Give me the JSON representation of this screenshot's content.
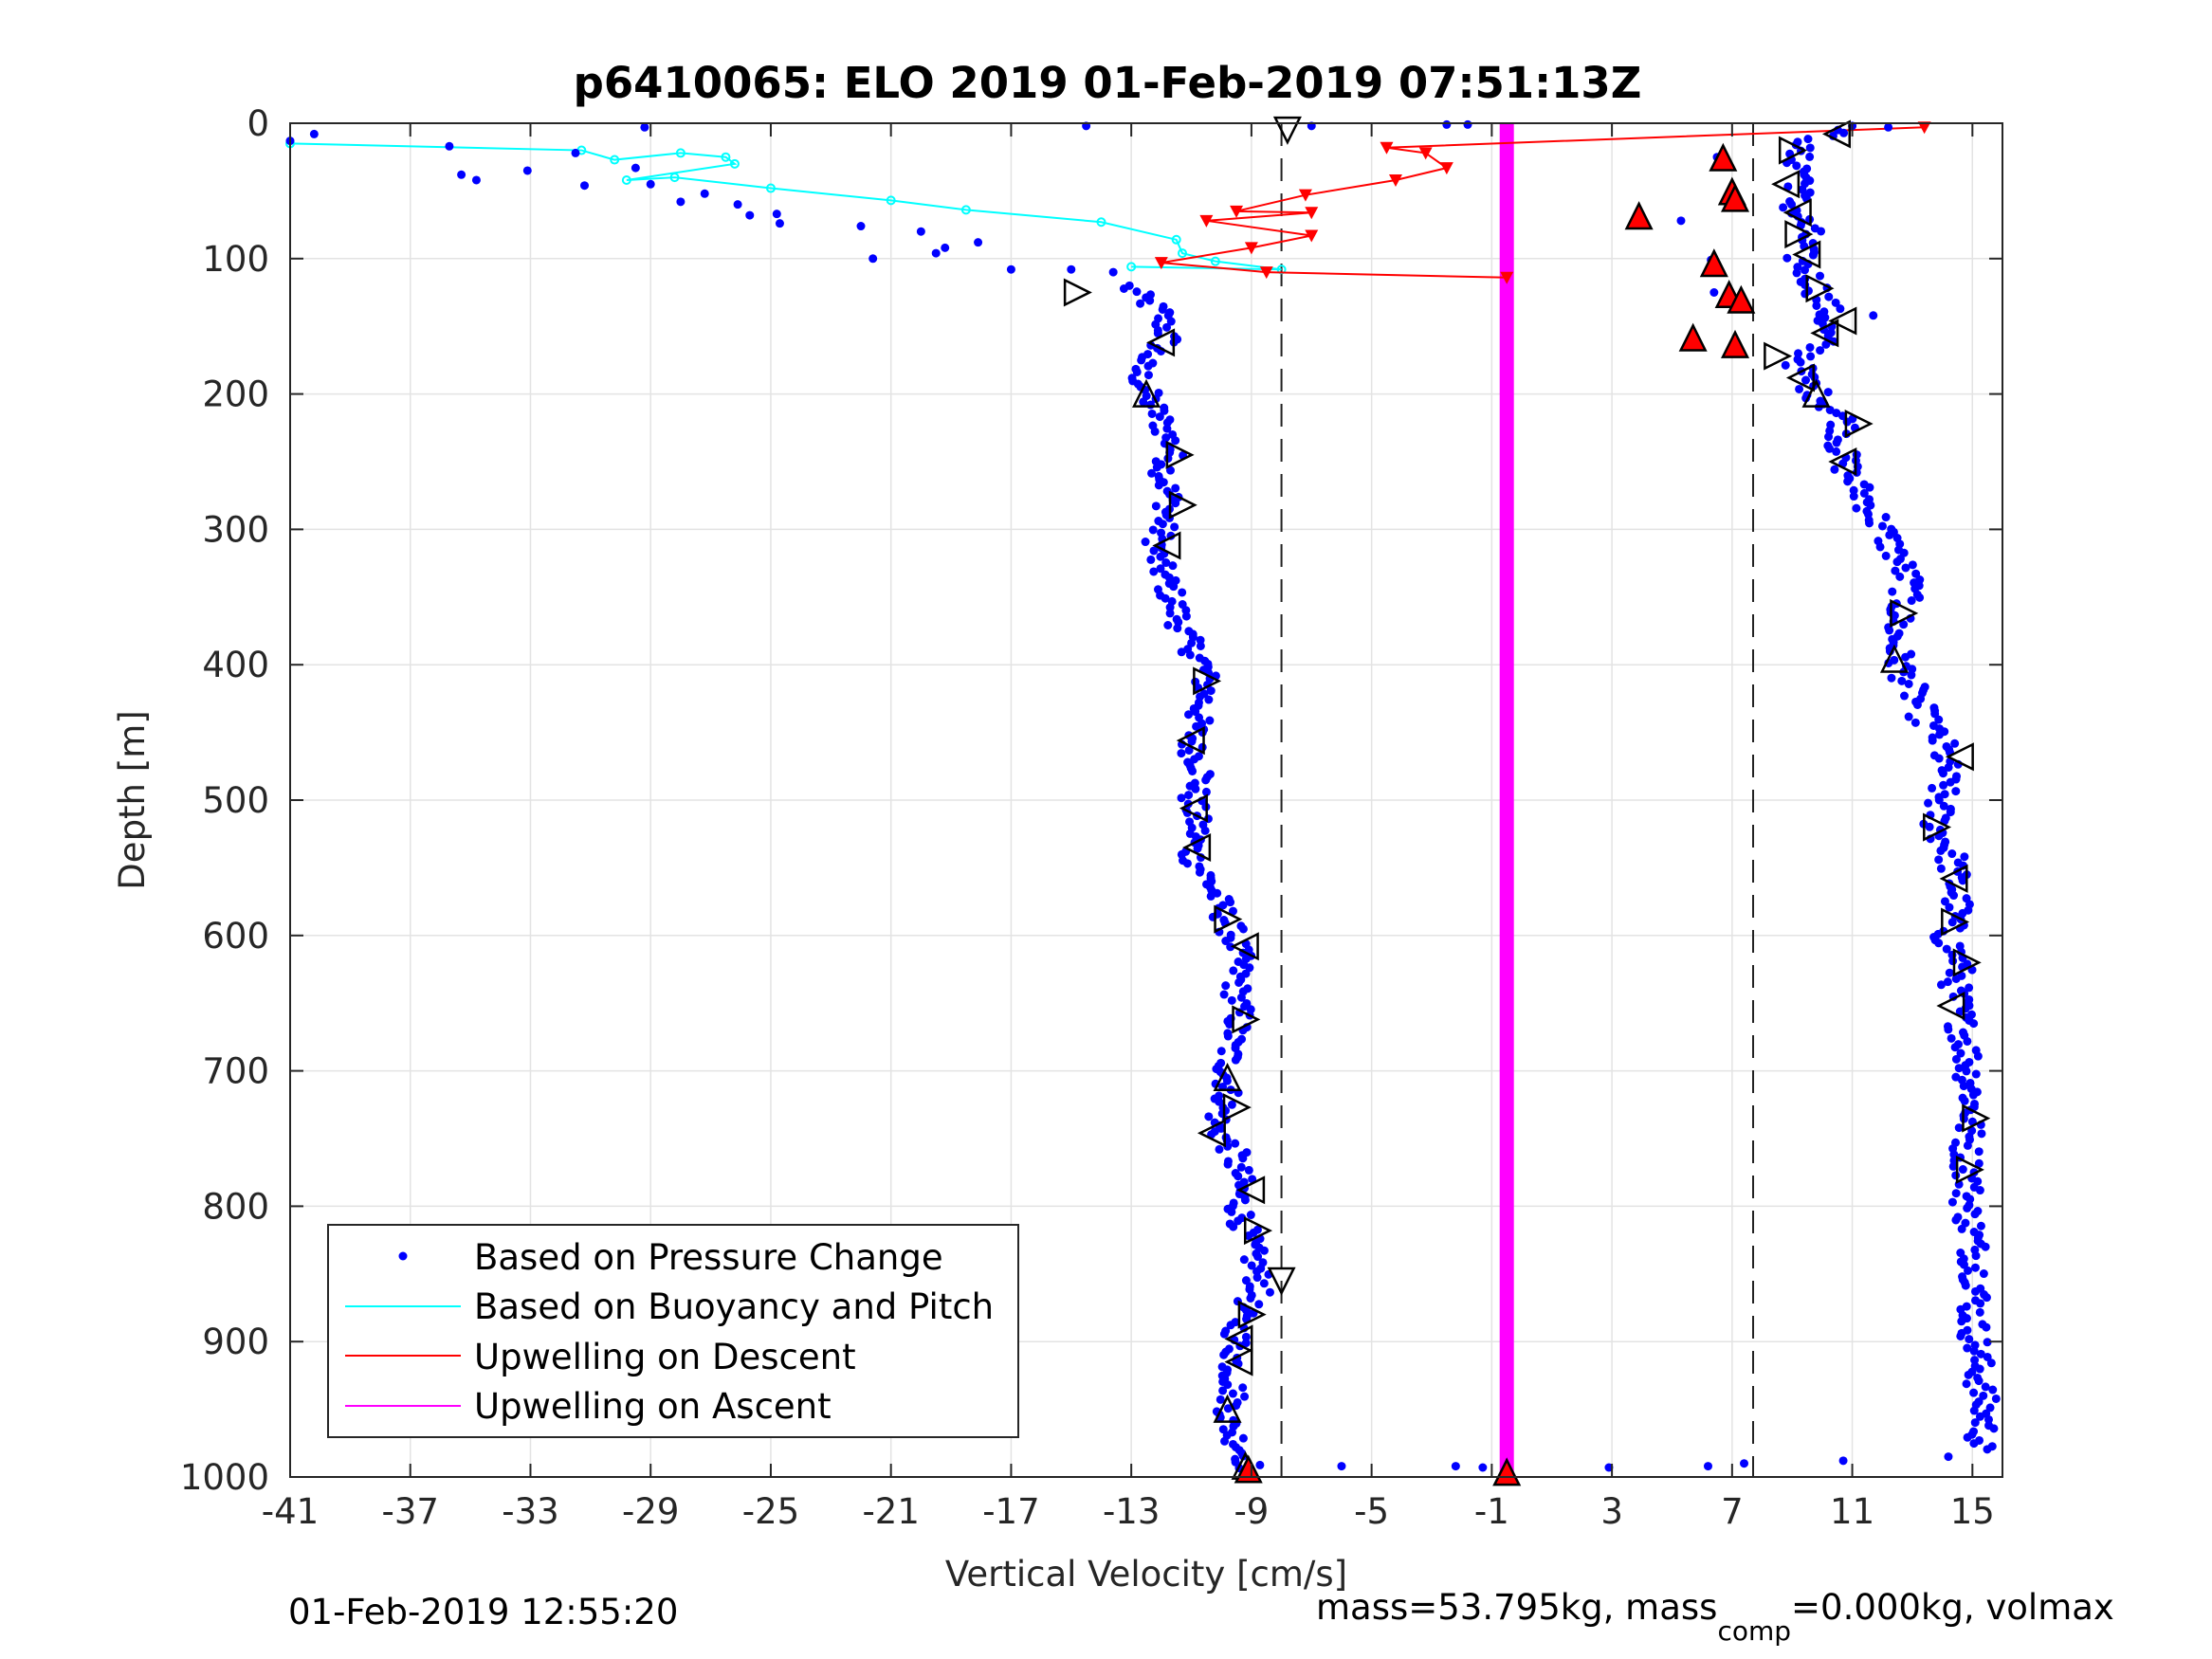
{
  "chart_data": {
    "type": "scatter",
    "title": "p6410065: ELO 2019 01-Feb-2019 07:51:13Z",
    "xlabel": "Vertical Velocity [cm/s]",
    "ylabel": "Depth [m]",
    "xlim": [
      -41,
      16
    ],
    "ylim": [
      0,
      1000
    ],
    "y_reversed": true,
    "grid": true,
    "xticks": [
      -41,
      -37,
      -33,
      -29,
      -25,
      -21,
      -17,
      -13,
      -9,
      -5,
      -1,
      3,
      7,
      11,
      15
    ],
    "yticks": [
      0,
      100,
      200,
      300,
      400,
      500,
      600,
      700,
      800,
      900,
      1000
    ],
    "vlines_dashed": [
      -8,
      7.7
    ],
    "legend": {
      "position": "bottom-left",
      "entries": [
        {
          "label": "Based on Pressure Change",
          "color": "#0000ff",
          "marker": "dot"
        },
        {
          "label": "Based on Buoyancy and Pitch",
          "color": "#00ffff",
          "marker": "line"
        },
        {
          "label": "Upwelling on Descent",
          "color": "#ff0000",
          "marker": "line"
        },
        {
          "label": "Upwelling on Ascent",
          "color": "#ff00ff",
          "marker": "line"
        }
      ]
    },
    "series": [
      {
        "name": "Based on Pressure Change",
        "color": "#0000ff",
        "descent_profile": {
          "depths": [
            120,
            140,
            160,
            180,
            200,
            220,
            240,
            260,
            280,
            300,
            320,
            340,
            360,
            380,
            400,
            420,
            440,
            460,
            480,
            500,
            520,
            540,
            560,
            580,
            600,
            620,
            640,
            660,
            680,
            700,
            720,
            740,
            760,
            780,
            800,
            820,
            840,
            860,
            880,
            900,
            920,
            940,
            960,
            980,
            995
          ],
          "velocities": [
            -13.2,
            -12.0,
            -11.8,
            -12.8,
            -12.5,
            -12.0,
            -11.6,
            -11.9,
            -11.7,
            -12.0,
            -12.2,
            -11.8,
            -11.5,
            -11.2,
            -10.6,
            -10.5,
            -10.8,
            -11.0,
            -10.6,
            -11.0,
            -10.8,
            -11.0,
            -10.4,
            -10.0,
            -9.6,
            -9.4,
            -9.5,
            -9.4,
            -9.7,
            -9.8,
            -9.8,
            -10.2,
            -9.6,
            -9.4,
            -9.4,
            -9.2,
            -8.9,
            -8.7,
            -9.4,
            -9.5,
            -9.6,
            -9.6,
            -9.8,
            -9.3,
            -9.0
          ]
        },
        "ascent_profile": {
          "depths": [
            5,
            20,
            40,
            60,
            80,
            100,
            120,
            140,
            160,
            180,
            200,
            220,
            240,
            260,
            280,
            300,
            320,
            340,
            360,
            380,
            400,
            420,
            440,
            460,
            480,
            500,
            520,
            540,
            560,
            580,
            600,
            620,
            640,
            660,
            680,
            700,
            720,
            740,
            760,
            780,
            800,
            820,
            840,
            860,
            880,
            900,
            920,
            940,
            960,
            980
          ],
          "velocities": [
            10.5,
            9.0,
            9.5,
            9.0,
            9.5,
            9.2,
            9.8,
            10.2,
            10.0,
            9.2,
            9.8,
            10.8,
            10.6,
            10.9,
            11.5,
            12.0,
            12.5,
            12.9,
            12.6,
            12.4,
            12.6,
            13.0,
            13.4,
            14.0,
            14.1,
            13.9,
            13.8,
            14.3,
            14.4,
            14.5,
            14.1,
            14.6,
            14.4,
            14.6,
            14.8,
            14.9,
            15.0,
            14.9,
            14.8,
            14.9,
            14.8,
            15.0,
            15.1,
            15.2,
            15.0,
            15.1,
            15.2,
            15.3,
            15.4,
            15.2
          ]
        },
        "surface_points": [
          {
            "v": -41.0,
            "d": 13
          },
          {
            "v": -40.2,
            "d": 8
          },
          {
            "v": -35.7,
            "d": 17
          },
          {
            "v": -35.3,
            "d": 38
          },
          {
            "v": -34.8,
            "d": 42
          },
          {
            "v": -33.1,
            "d": 35
          },
          {
            "v": -31.5,
            "d": 22
          },
          {
            "v": -31.2,
            "d": 46
          },
          {
            "v": -29.5,
            "d": 33
          },
          {
            "v": -29.2,
            "d": 3
          },
          {
            "v": -29.0,
            "d": 45
          },
          {
            "v": -28.0,
            "d": 58
          },
          {
            "v": -27.2,
            "d": 52
          },
          {
            "v": -26.1,
            "d": 60
          },
          {
            "v": -25.7,
            "d": 68
          },
          {
            "v": -24.8,
            "d": 67
          },
          {
            "v": -24.7,
            "d": 74
          },
          {
            "v": -22.0,
            "d": 76
          },
          {
            "v": -20.0,
            "d": 80
          },
          {
            "v": -19.2,
            "d": 92
          },
          {
            "v": -18.1,
            "d": 88
          },
          {
            "v": -21.6,
            "d": 100
          },
          {
            "v": -19.5,
            "d": 96
          },
          {
            "v": -17.0,
            "d": 108
          },
          {
            "v": -15.0,
            "d": 108
          },
          {
            "v": -13.6,
            "d": 110
          },
          {
            "v": -14.5,
            "d": 2
          },
          {
            "v": -7.0,
            "d": 2
          },
          {
            "v": -2.5,
            "d": 1
          },
          {
            "v": -1.8,
            "d": 1
          },
          {
            "v": 11.0,
            "d": 2
          },
          {
            "v": 12.2,
            "d": 3
          },
          {
            "v": 6.5,
            "d": 25
          },
          {
            "v": 5.3,
            "d": 72
          },
          {
            "v": 6.3,
            "d": 101
          },
          {
            "v": 5.6,
            "d": 163
          },
          {
            "v": 6.4,
            "d": 125
          },
          {
            "v": 11.7,
            "d": 142
          }
        ],
        "bottom_points": [
          {
            "v": -6.0,
            "d": 992
          },
          {
            "v": -2.2,
            "d": 992
          },
          {
            "v": -1.3,
            "d": 993
          },
          {
            "v": 2.9,
            "d": 993
          },
          {
            "v": 6.2,
            "d": 992
          },
          {
            "v": 7.4,
            "d": 990
          },
          {
            "v": 10.7,
            "d": 988
          },
          {
            "v": 14.2,
            "d": 985
          }
        ]
      },
      {
        "name": "Based on Buoyancy and Pitch",
        "color": "#00ffff",
        "points": [
          {
            "v": -41.0,
            "d": 15
          },
          {
            "v": -31.3,
            "d": 20
          },
          {
            "v": -30.2,
            "d": 27
          },
          {
            "v": -28.0,
            "d": 22
          },
          {
            "v": -26.5,
            "d": 25
          },
          {
            "v": -26.2,
            "d": 30
          },
          {
            "v": -29.8,
            "d": 42
          },
          {
            "v": -28.2,
            "d": 40
          },
          {
            "v": -25.0,
            "d": 48
          },
          {
            "v": -21.0,
            "d": 57
          },
          {
            "v": -18.5,
            "d": 64
          },
          {
            "v": -14.0,
            "d": 73
          },
          {
            "v": -11.5,
            "d": 86
          },
          {
            "v": -11.3,
            "d": 96
          },
          {
            "v": -10.2,
            "d": 102
          },
          {
            "v": -8.0,
            "d": 108
          },
          {
            "v": -13.0,
            "d": 106
          }
        ]
      },
      {
        "name": "Upwelling on Descent",
        "color": "#ff0000",
        "points": [
          {
            "v": 13.4,
            "d": 3
          },
          {
            "v": -4.5,
            "d": 18
          },
          {
            "v": -3.2,
            "d": 22
          },
          {
            "v": -2.5,
            "d": 33
          },
          {
            "v": -4.2,
            "d": 42
          },
          {
            "v": -7.2,
            "d": 53
          },
          {
            "v": -9.5,
            "d": 65
          },
          {
            "v": -7.0,
            "d": 66
          },
          {
            "v": -10.5,
            "d": 72
          },
          {
            "v": -7.0,
            "d": 83
          },
          {
            "v": -9.0,
            "d": 92
          },
          {
            "v": -12.0,
            "d": 103
          },
          {
            "v": -8.5,
            "d": 110
          },
          {
            "v": -0.5,
            "d": 114
          }
        ]
      },
      {
        "name": "Upwelling on Ascent",
        "color": "#ff00ff",
        "constant_value": -0.5,
        "depth_range": [
          0,
          1000
        ]
      },
      {
        "name": "Triangles (open)",
        "color": "#000000",
        "points": [
          {
            "v": -7.8,
            "d": 5,
            "dir": "down"
          },
          {
            "v": -14.8,
            "d": 125,
            "dir": "right"
          },
          {
            "v": -12.0,
            "d": 162,
            "dir": "left"
          },
          {
            "v": -12.5,
            "d": 200,
            "dir": "up"
          },
          {
            "v": -11.4,
            "d": 245,
            "dir": "right"
          },
          {
            "v": -11.3,
            "d": 282,
            "dir": "right"
          },
          {
            "v": -11.8,
            "d": 312,
            "dir": "left"
          },
          {
            "v": -10.5,
            "d": 412,
            "dir": "right"
          },
          {
            "v": -11.0,
            "d": 456,
            "dir": "left"
          },
          {
            "v": -10.9,
            "d": 506,
            "dir": "left"
          },
          {
            "v": -10.8,
            "d": 535,
            "dir": "left"
          },
          {
            "v": -9.8,
            "d": 588,
            "dir": "right"
          },
          {
            "v": -9.2,
            "d": 608,
            "dir": "left"
          },
          {
            "v": -9.2,
            "d": 662,
            "dir": "right"
          },
          {
            "v": -9.8,
            "d": 705,
            "dir": "up"
          },
          {
            "v": -9.5,
            "d": 727,
            "dir": "right"
          },
          {
            "v": -10.3,
            "d": 746,
            "dir": "left"
          },
          {
            "v": -9.0,
            "d": 788,
            "dir": "left"
          },
          {
            "v": -8.8,
            "d": 818,
            "dir": "right"
          },
          {
            "v": -8.0,
            "d": 855,
            "dir": "down"
          },
          {
            "v": -9.0,
            "d": 880,
            "dir": "right"
          },
          {
            "v": -9.4,
            "d": 898,
            "dir": "left"
          },
          {
            "v": -9.4,
            "d": 915,
            "dir": "left"
          },
          {
            "v": -9.8,
            "d": 950,
            "dir": "up"
          },
          {
            "v": -9.2,
            "d": 992,
            "dir": "up"
          },
          {
            "v": 10.5,
            "d": 8,
            "dir": "left"
          },
          {
            "v": 9.0,
            "d": 20,
            "dir": "right"
          },
          {
            "v": 8.8,
            "d": 45,
            "dir": "left"
          },
          {
            "v": 9.2,
            "d": 66,
            "dir": "left"
          },
          {
            "v": 9.2,
            "d": 82,
            "dir": "right"
          },
          {
            "v": 9.5,
            "d": 97,
            "dir": "left"
          },
          {
            "v": 9.9,
            "d": 122,
            "dir": "right"
          },
          {
            "v": 10.7,
            "d": 146,
            "dir": "left"
          },
          {
            "v": 10.1,
            "d": 155,
            "dir": "left"
          },
          {
            "v": 8.5,
            "d": 172,
            "dir": "right"
          },
          {
            "v": 9.3,
            "d": 188,
            "dir": "left"
          },
          {
            "v": 9.8,
            "d": 200,
            "dir": "up"
          },
          {
            "v": 11.2,
            "d": 222,
            "dir": "right"
          },
          {
            "v": 10.7,
            "d": 250,
            "dir": "left"
          },
          {
            "v": 12.7,
            "d": 362,
            "dir": "right"
          },
          {
            "v": 12.4,
            "d": 396,
            "dir": "up"
          },
          {
            "v": 14.6,
            "d": 468,
            "dir": "left"
          },
          {
            "v": 13.8,
            "d": 520,
            "dir": "right"
          },
          {
            "v": 14.4,
            "d": 558,
            "dir": "left"
          },
          {
            "v": 14.4,
            "d": 590,
            "dir": "right"
          },
          {
            "v": 14.8,
            "d": 620,
            "dir": "right"
          },
          {
            "v": 14.3,
            "d": 652,
            "dir": "left"
          },
          {
            "v": 15.1,
            "d": 735,
            "dir": "right"
          },
          {
            "v": 14.9,
            "d": 773,
            "dir": "right"
          }
        ]
      },
      {
        "name": "Triangles (filled)",
        "color": "#ff0000",
        "points": [
          {
            "v": 6.7,
            "d": 27
          },
          {
            "v": 7.0,
            "d": 52
          },
          {
            "v": 7.1,
            "d": 57
          },
          {
            "v": 3.9,
            "d": 70
          },
          {
            "v": 6.4,
            "d": 105
          },
          {
            "v": 6.9,
            "d": 128
          },
          {
            "v": 7.3,
            "d": 132
          },
          {
            "v": 5.7,
            "d": 160
          },
          {
            "v": 7.1,
            "d": 165
          },
          {
            "v": -9.1,
            "d": 996
          },
          {
            "v": -0.5,
            "d": 998
          }
        ]
      }
    ]
  },
  "footer": {
    "left_timestamp": "01-Feb-2019 12:55:20",
    "right_prefix": "mass=53.795kg, mass",
    "right_subscript": "comp",
    "right_suffix": "=0.000kg, volmax"
  }
}
